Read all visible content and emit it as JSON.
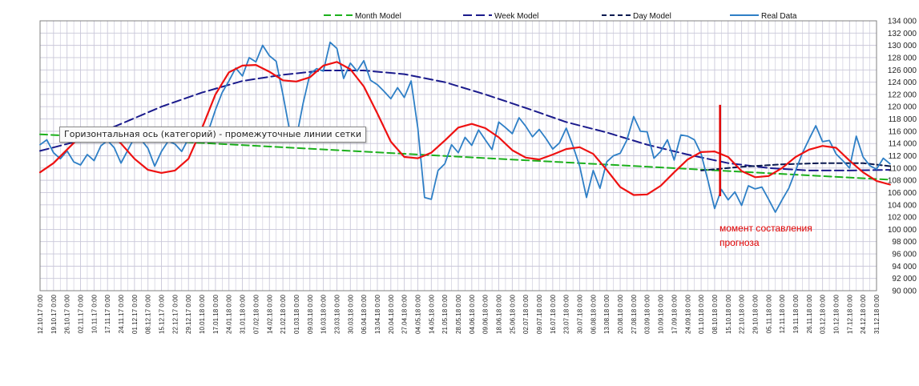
{
  "chart_data": {
    "type": "line",
    "ylim": [
      90000,
      134000
    ],
    "grid": true,
    "legend_placement": "top",
    "y_ticks": [
      "90 000",
      "92 000",
      "94 000",
      "96 000",
      "98 000",
      "100 000",
      "102 000",
      "104 000",
      "106 000",
      "108 000",
      "110 000",
      "112 000",
      "114 000",
      "116 000",
      "118 000",
      "120 000",
      "122 000",
      "124 000",
      "126 000",
      "128 000",
      "130 000",
      "132 000",
      "134 000"
    ],
    "x_ticks": [
      "12.10.17 0:00",
      "19.10.17 0:00",
      "26.10.17 0:00",
      "02.11.17 0:00",
      "10.11.17 0:00",
      "17.11.17 0:00",
      "24.11.17 0:00",
      "01.12.17 0:00",
      "08.12.17 0:00",
      "15.12.17 0:00",
      "22.12.17 0:00",
      "29.12.17 0:00",
      "10.01.18 0:00",
      "17.01.18 0:00",
      "24.01.18 0:00",
      "31.01.18 0:00",
      "07.02.18 0:00",
      "14.02.18 0:00",
      "21.02.18 0:00",
      "01.03.18 0:00",
      "09.03.18 0:00",
      "16.03.18 0:00",
      "23.03.18 0:00",
      "30.03.18 0:00",
      "06.04.18 0:00",
      "13.04.18 0:00",
      "20.04.18 0:00",
      "27.04.18 0:00",
      "04.05.18 0:00",
      "14.05.18 0:00",
      "21.05.18 0:00",
      "28.05.18 0:00",
      "04.06.18 0:00",
      "09.06.18 0:00",
      "18.06.18 0:00",
      "25.06.18 0:00",
      "02.07.18 0:00",
      "09.07.18 0:00",
      "16.07.18 0:00",
      "23.07.18 0:00",
      "30.07.18 0:00",
      "06.08.18 0:00",
      "13.08.18 0:00",
      "20.08.18 0:00",
      "27.08.18 0:00",
      "03.09.18 0:00",
      "10.09.18 0:00",
      "17.09.18 0:00",
      "24.09.18 0:00",
      "01.10.18 0:00",
      "08.10.18 0:00",
      "15.10.18 0:00",
      "22.10.18 0:00",
      "29.10.18 0:00",
      "05.11.18 0:00",
      "12.11.18 0:00",
      "19.11.18 0:00",
      "26.11.18 0:00",
      "03.12.18 0:00",
      "10.12.18 0:00",
      "17.12.18 0:00",
      "24.12.18 0:00",
      "31.12.18 0:00"
    ],
    "series": [
      {
        "name": "Month Model",
        "color": "#1cb01c",
        "dash": "dash",
        "points": [
          [
            0,
            115500
          ],
          [
            63,
            108100
          ]
        ]
      },
      {
        "name": "Week Model",
        "color": "#1a1a8c",
        "dash": "longdash",
        "points": [
          [
            0,
            112800
          ],
          [
            3,
            114500
          ],
          [
            6,
            117200
          ],
          [
            9,
            120000
          ],
          [
            12,
            122300
          ],
          [
            15,
            124200
          ],
          [
            18,
            125200
          ],
          [
            21,
            125900
          ],
          [
            24,
            125900
          ],
          [
            27,
            125300
          ],
          [
            30,
            124000
          ],
          [
            33,
            122000
          ],
          [
            36,
            119800
          ],
          [
            39,
            117500
          ],
          [
            42,
            115800
          ],
          [
            45,
            113800
          ],
          [
            48,
            112200
          ],
          [
            51,
            110800
          ],
          [
            54,
            110000
          ],
          [
            57,
            109600
          ],
          [
            60,
            109600
          ],
          [
            63,
            109700
          ]
        ]
      },
      {
        "name": "Day Model",
        "color": "#0a1a50",
        "dash": "shortdash",
        "points": [
          [
            49,
            109600
          ],
          [
            52,
            110200
          ],
          [
            55,
            110600
          ],
          [
            58,
            110800
          ],
          [
            61,
            110800
          ],
          [
            63,
            110300
          ]
        ]
      },
      {
        "name": "",
        "color": "#ee1111",
        "dash": "solid",
        "points": [
          [
            0,
            109300
          ],
          [
            1,
            110800
          ],
          [
            2,
            113000
          ],
          [
            3,
            115200
          ],
          [
            4,
            116400
          ],
          [
            5,
            116100
          ],
          [
            6,
            114000
          ],
          [
            7,
            111500
          ],
          [
            8,
            109700
          ],
          [
            9,
            109200
          ],
          [
            10,
            109600
          ],
          [
            11,
            111500
          ],
          [
            12,
            116500
          ],
          [
            13,
            122000
          ],
          [
            14,
            125600
          ],
          [
            15,
            126700
          ],
          [
            16,
            126800
          ],
          [
            17,
            125700
          ],
          [
            18,
            124300
          ],
          [
            19,
            124100
          ],
          [
            20,
            124800
          ],
          [
            21,
            126700
          ],
          [
            22,
            127300
          ],
          [
            23,
            126100
          ],
          [
            24,
            123300
          ],
          [
            25,
            118900
          ],
          [
            26,
            114300
          ],
          [
            27,
            111800
          ],
          [
            28,
            111600
          ],
          [
            29,
            112500
          ],
          [
            30,
            114500
          ],
          [
            31,
            116600
          ],
          [
            32,
            117200
          ],
          [
            33,
            116500
          ],
          [
            34,
            115000
          ],
          [
            35,
            112900
          ],
          [
            36,
            111700
          ],
          [
            37,
            111400
          ],
          [
            38,
            112200
          ],
          [
            39,
            113100
          ],
          [
            40,
            113400
          ],
          [
            41,
            112300
          ],
          [
            42,
            109700
          ],
          [
            43,
            106900
          ],
          [
            44,
            105600
          ],
          [
            45,
            105700
          ],
          [
            46,
            107100
          ],
          [
            47,
            109300
          ],
          [
            48,
            111400
          ],
          [
            49,
            112600
          ],
          [
            50,
            112700
          ],
          [
            51,
            111800
          ],
          [
            52,
            109500
          ],
          [
            53,
            108500
          ],
          [
            54,
            108700
          ],
          [
            55,
            110000
          ],
          [
            56,
            111800
          ],
          [
            57,
            113000
          ],
          [
            58,
            113600
          ],
          [
            59,
            113300
          ],
          [
            60,
            111200
          ],
          [
            61,
            109300
          ],
          [
            62,
            107900
          ],
          [
            63,
            107300
          ]
        ]
      },
      {
        "name": "Real Data",
        "color": "#2e7fc6",
        "dash": "solid",
        "points": [
          [
            0,
            113800
          ],
          [
            0.5,
            114600
          ],
          [
            1,
            112500
          ],
          [
            1.5,
            111500
          ],
          [
            2,
            112800
          ],
          [
            2.5,
            111000
          ],
          [
            3,
            110500
          ],
          [
            3.5,
            112200
          ],
          [
            4,
            111200
          ],
          [
            4.5,
            113600
          ],
          [
            5,
            114500
          ],
          [
            5.5,
            113300
          ],
          [
            6,
            110800
          ],
          [
            6.5,
            112900
          ],
          [
            7,
            115000
          ],
          [
            7.5,
            114600
          ],
          [
            8,
            113200
          ],
          [
            8.5,
            110300
          ],
          [
            9,
            112700
          ],
          [
            9.5,
            114400
          ],
          [
            10,
            113900
          ],
          [
            10.5,
            112700
          ],
          [
            11,
            114800
          ],
          [
            11.5,
            116000
          ],
          [
            12,
            115100
          ],
          [
            12.5,
            116200
          ],
          [
            13,
            119500
          ],
          [
            13.5,
            122300
          ],
          [
            14,
            124200
          ],
          [
            14.5,
            126300
          ],
          [
            15,
            125000
          ],
          [
            15.5,
            128000
          ],
          [
            16,
            127300
          ],
          [
            16.5,
            130000
          ],
          [
            17,
            128300
          ],
          [
            17.5,
            127400
          ],
          [
            18,
            122000
          ],
          [
            18.5,
            116100
          ],
          [
            19,
            114900
          ],
          [
            19.5,
            120600
          ],
          [
            20,
            125300
          ],
          [
            20.5,
            126200
          ],
          [
            21,
            125800
          ],
          [
            21.5,
            130500
          ],
          [
            22,
            129500
          ],
          [
            22.5,
            124600
          ],
          [
            23,
            127100
          ],
          [
            23.5,
            125800
          ],
          [
            24,
            127500
          ],
          [
            24.5,
            124300
          ],
          [
            25,
            123600
          ],
          [
            25.5,
            122500
          ],
          [
            26,
            121300
          ],
          [
            26.5,
            123100
          ],
          [
            27,
            121500
          ],
          [
            27.5,
            124200
          ],
          [
            28,
            116500
          ],
          [
            28.5,
            105200
          ],
          [
            29,
            104900
          ],
          [
            29.5,
            109600
          ],
          [
            30,
            110700
          ],
          [
            30.5,
            113800
          ],
          [
            31,
            112500
          ],
          [
            31.5,
            115000
          ],
          [
            32,
            113700
          ],
          [
            32.5,
            116200
          ],
          [
            33,
            114600
          ],
          [
            33.5,
            113000
          ],
          [
            34,
            117500
          ],
          [
            34.5,
            116600
          ],
          [
            35,
            115600
          ],
          [
            35.5,
            118200
          ],
          [
            36,
            116800
          ],
          [
            36.5,
            115100
          ],
          [
            37,
            116300
          ],
          [
            37.5,
            114800
          ],
          [
            38,
            113100
          ],
          [
            38.5,
            114100
          ],
          [
            39,
            116500
          ],
          [
            39.5,
            113600
          ],
          [
            40,
            110300
          ],
          [
            40.5,
            105200
          ],
          [
            41,
            109600
          ],
          [
            41.5,
            106700
          ],
          [
            42,
            111000
          ],
          [
            42.5,
            112000
          ],
          [
            43,
            112400
          ],
          [
            43.5,
            114600
          ],
          [
            44,
            118400
          ],
          [
            44.5,
            116000
          ],
          [
            45,
            115900
          ],
          [
            45.5,
            111600
          ],
          [
            46,
            112700
          ],
          [
            46.5,
            114600
          ],
          [
            47,
            111300
          ],
          [
            47.5,
            115400
          ],
          [
            48,
            115200
          ],
          [
            48.5,
            114600
          ],
          [
            49,
            112300
          ],
          [
            49.5,
            108000
          ],
          [
            50,
            103400
          ],
          [
            50.5,
            106500
          ],
          [
            51,
            104800
          ],
          [
            51.5,
            106100
          ],
          [
            52,
            103900
          ],
          [
            52.5,
            107100
          ],
          [
            53,
            106600
          ],
          [
            53.5,
            106900
          ],
          [
            54,
            104900
          ],
          [
            54.5,
            102800
          ],
          [
            55,
            104800
          ],
          [
            55.5,
            106700
          ],
          [
            56,
            109600
          ],
          [
            56.5,
            112400
          ],
          [
            57,
            114700
          ],
          [
            57.5,
            116900
          ],
          [
            58,
            114300
          ],
          [
            58.5,
            114500
          ],
          [
            59,
            112300
          ],
          [
            59.5,
            111200
          ],
          [
            60,
            110000
          ],
          [
            60.5,
            115200
          ],
          [
            61,
            111800
          ],
          [
            61.5,
            110400
          ],
          [
            62,
            109800
          ],
          [
            62.5,
            111600
          ],
          [
            63,
            110700
          ]
        ]
      }
    ],
    "annotation": {
      "text_line1": "момент составления",
      "text_line2": "прогноза",
      "x": 50.4,
      "y_from": 105400,
      "y_to": 120300
    }
  },
  "tooltip_text": "Горизонтальная ось (категорий)  - промежуточные линии сетки",
  "colors": {
    "grid": "#c9c7d9",
    "axis": "#808080",
    "marker": "#e00000"
  }
}
